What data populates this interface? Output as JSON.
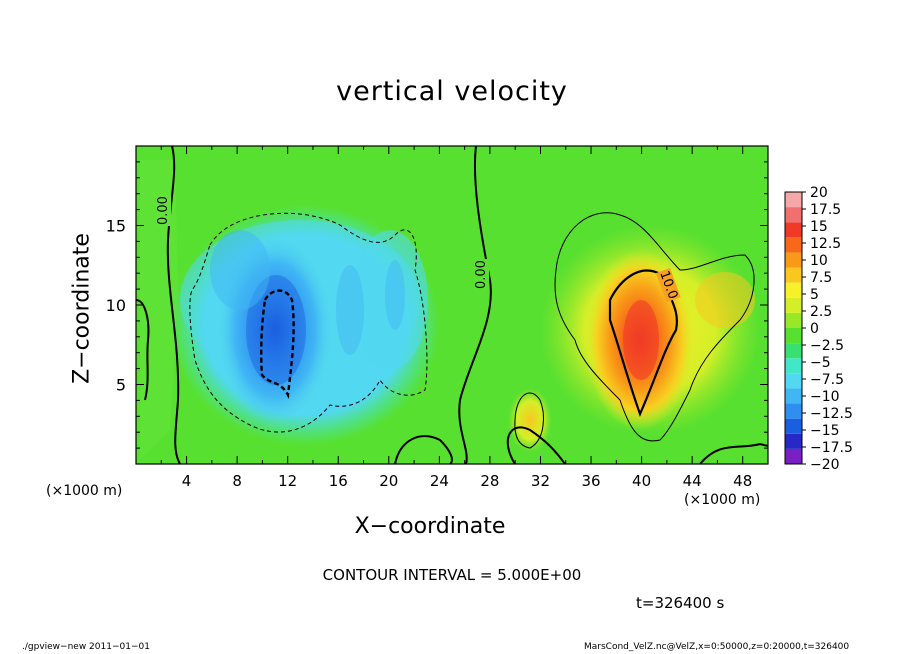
{
  "chart_data": {
    "type": "heatmap",
    "title": "vertical velocity",
    "xlabel": "X−coordinate",
    "ylabel": "Z−coordinate",
    "x_unit": "(×1000 m)",
    "y_unit": "(×1000 m)",
    "xlim": [
      0,
      50
    ],
    "ylim": [
      0,
      20
    ],
    "x_ticks": [
      "4",
      "8",
      "12",
      "16",
      "20",
      "24",
      "28",
      "32",
      "36",
      "40",
      "44",
      "48"
    ],
    "y_ticks": [
      "5",
      "10",
      "15"
    ],
    "colorbar_ticks": [
      "20",
      "17.5",
      "15",
      "12.5",
      "10",
      "7.5",
      "5",
      "2.5",
      "0",
      "−2.5",
      "−5",
      "−7.5",
      "−10",
      "−12.5",
      "−15",
      "−17.5",
      "−20"
    ],
    "colorbar_range": [
      -20,
      20
    ],
    "colorbar_colors": [
      "#7a1fc4",
      "#2828c8",
      "#1a5fe0",
      "#2f8ff0",
      "#40b6f4",
      "#52d8f0",
      "#40e8c8",
      "#38e070",
      "#58e030",
      "#98e828",
      "#d4ef28",
      "#f8f028",
      "#f8c820",
      "#f89a18",
      "#f86818",
      "#f03a28",
      "#f07070",
      "#f4a8a8"
    ],
    "contour_labels": [
      "0.00",
      "0.00",
      "10.0"
    ],
    "contour_interval": "CONTOUR INTERVAL = 5.000E+00",
    "time": "t=326400 s",
    "footer_left": "./gpview−new   2011−01−01",
    "footer_right": "MarsCond_VelZ.nc@VelZ,x=0:50000,z=0:20000,t=326400"
  }
}
